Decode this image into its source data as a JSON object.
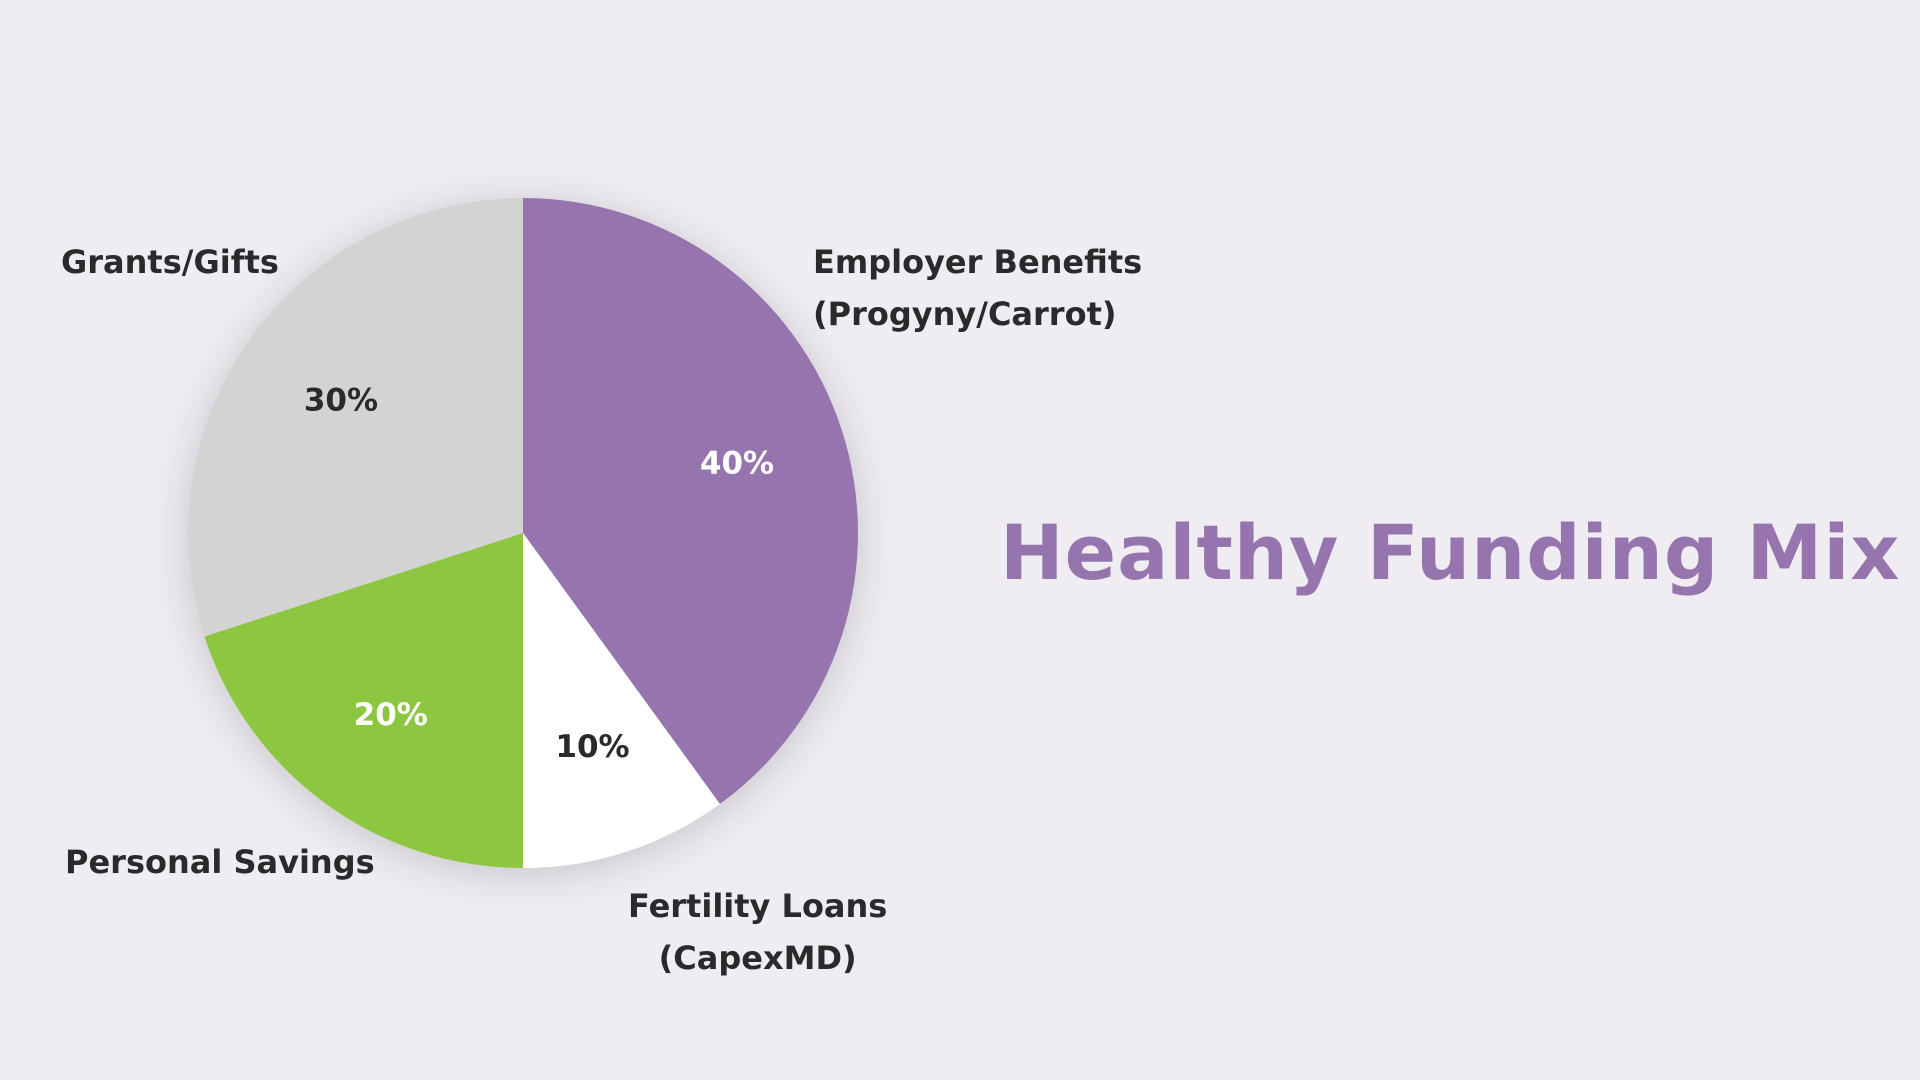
{
  "chart_data": {
    "type": "pie",
    "title": "Healthy Funding Mix",
    "slices": [
      {
        "label": "Employer Benefits (Progyny/Carrot)",
        "label_lines": [
          "Employer Benefits",
          "(Progyny/Carrot)"
        ],
        "value": 40,
        "display": "40%",
        "color": "#9675ae",
        "text_color": "#ffffff"
      },
      {
        "label": "Fertility Loans (CapexMD)",
        "label_lines": [
          "Fertility Loans",
          "(CapexMD)"
        ],
        "value": 10,
        "display": "10%",
        "color": "#ffffff",
        "text_color": "#2a2a2c"
      },
      {
        "label": "Personal Savings",
        "label_lines": [
          "Personal Savings"
        ],
        "value": 20,
        "display": "20%",
        "color": "#8dc63f",
        "text_color": "#ffffff"
      },
      {
        "label": "Grants/Gifts",
        "label_lines": [
          "Grants/Gifts"
        ],
        "value": 30,
        "display": "30%",
        "color": "#d4d3d3",
        "text_color": "#2a2a2c"
      }
    ],
    "start_angle": "12 o'clock",
    "direction": "clockwise",
    "legend": "outside labels"
  }
}
